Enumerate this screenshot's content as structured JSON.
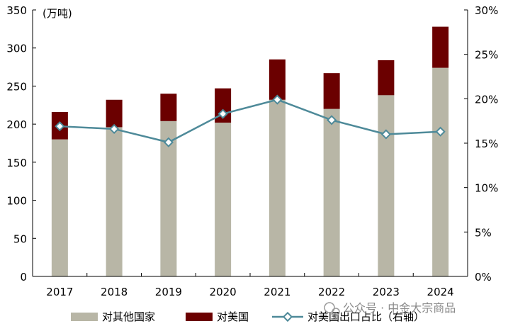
{
  "colors": {
    "other_countries": "#b8b6a6",
    "usa": "#6b0000",
    "ratio_line": "#4e8a99",
    "ratio_marker_fill": "#ffffff",
    "axis": "#000000"
  },
  "watermark": "公众号 · 中金大宗商品",
  "chart_data": {
    "type": "bar",
    "stacked": true,
    "categories": [
      "2017",
      "2018",
      "2019",
      "2020",
      "2021",
      "2022",
      "2023",
      "2024"
    ],
    "series": [
      {
        "name": "对其他国家",
        "kind": "bar",
        "axis": "left",
        "values": [
          180,
          196,
          204,
          202,
          232,
          220,
          238,
          274
        ]
      },
      {
        "name": "对美国",
        "kind": "bar",
        "axis": "left",
        "values": [
          36,
          36,
          36,
          45,
          53,
          47,
          46,
          54
        ]
      },
      {
        "name": "对美国出口占比（右轴）",
        "kind": "line",
        "axis": "right",
        "values": [
          16.9,
          16.6,
          15.1,
          18.3,
          19.9,
          17.6,
          16.0,
          16.3
        ]
      }
    ],
    "ylabel": "(万吨)",
    "ylim": [
      0,
      350
    ],
    "yticks": [
      "0",
      "50",
      "100",
      "150",
      "200",
      "250",
      "300",
      "350"
    ],
    "ylim_right": [
      0,
      30
    ],
    "yticks_right": [
      "0%",
      "5%",
      "10%",
      "15%",
      "20%",
      "25%",
      "30%"
    ],
    "legend_position": "bottom",
    "grid": false
  }
}
